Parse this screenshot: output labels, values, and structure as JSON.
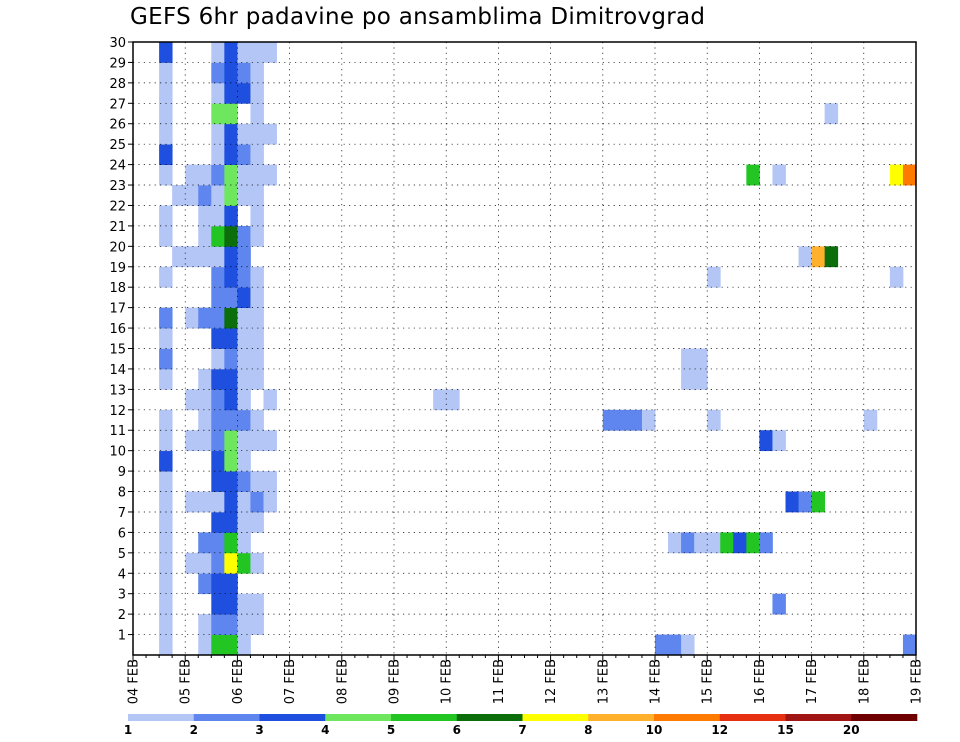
{
  "chart_title": "GEFS 6hr padavine po ansamblima Dimitrovgrad",
  "chart_data": {
    "type": "heatmap",
    "title": "GEFS 6hr padavine po ansamblima Dimitrovgrad",
    "x_axis": {
      "tick_labels": [
        "04 FEB",
        "05 FEB",
        "06 FEB",
        "07 FEB",
        "08 FEB",
        "09 FEB",
        "10 FEB",
        "11 FEB",
        "12 FEB",
        "13 FEB",
        "14 FEB",
        "15 FEB",
        "16 FEB",
        "17 FEB",
        "18 FEB",
        "19 FEB"
      ],
      "steps_per_day": 4,
      "total_steps": 60
    },
    "y_axis": {
      "tick_labels": [
        "1",
        "2",
        "3",
        "4",
        "5",
        "6",
        "7",
        "8",
        "9",
        "10",
        "11",
        "12",
        "13",
        "14",
        "15",
        "16",
        "17",
        "18",
        "19",
        "20",
        "21",
        "22",
        "23",
        "24",
        "25",
        "26",
        "27",
        "28",
        "29",
        "30"
      ],
      "range": [
        0,
        30
      ]
    },
    "grid": true,
    "colorbar": {
      "position": "bottom",
      "labels": [
        "1",
        "2",
        "3",
        "4",
        "5",
        "6",
        "7",
        "8",
        "10",
        "12",
        "15",
        "20"
      ],
      "colors": [
        "#b3c6f5",
        "#5e86ee",
        "#1f4fde",
        "#6ee65e",
        "#22c522",
        "#0b6e0b",
        "#ffff00",
        "#ffb12e",
        "#ff7a00",
        "#e63012",
        "#a01414",
        "#6e0000"
      ]
    },
    "cells": [
      [
        1,
        2,
        1
      ],
      [
        1,
        5,
        1
      ],
      [
        1,
        6,
        5
      ],
      [
        1,
        7,
        5
      ],
      [
        1,
        8,
        1
      ],
      [
        1,
        40,
        2
      ],
      [
        1,
        41,
        2
      ],
      [
        1,
        42,
        1
      ],
      [
        1,
        59,
        2
      ],
      [
        2,
        2,
        1
      ],
      [
        2,
        5,
        1
      ],
      [
        2,
        6,
        2
      ],
      [
        2,
        7,
        2
      ],
      [
        2,
        8,
        1
      ],
      [
        2,
        9,
        1
      ],
      [
        3,
        2,
        1
      ],
      [
        3,
        6,
        3
      ],
      [
        3,
        7,
        3
      ],
      [
        3,
        8,
        1
      ],
      [
        3,
        9,
        1
      ],
      [
        3,
        49,
        2
      ],
      [
        4,
        2,
        1
      ],
      [
        4,
        5,
        2
      ],
      [
        4,
        6,
        3
      ],
      [
        4,
        7,
        3
      ],
      [
        5,
        2,
        1
      ],
      [
        5,
        4,
        1
      ],
      [
        5,
        5,
        1
      ],
      [
        5,
        6,
        2
      ],
      [
        5,
        7,
        7
      ],
      [
        5,
        8,
        5
      ],
      [
        5,
        9,
        1
      ],
      [
        6,
        2,
        1
      ],
      [
        6,
        5,
        2
      ],
      [
        6,
        6,
        2
      ],
      [
        6,
        7,
        5
      ],
      [
        6,
        8,
        1
      ],
      [
        6,
        41,
        1
      ],
      [
        6,
        42,
        2
      ],
      [
        6,
        43,
        1
      ],
      [
        6,
        44,
        1
      ],
      [
        6,
        45,
        5
      ],
      [
        6,
        46,
        3
      ],
      [
        6,
        47,
        5
      ],
      [
        6,
        48,
        2
      ],
      [
        7,
        2,
        1
      ],
      [
        7,
        6,
        3
      ],
      [
        7,
        7,
        3
      ],
      [
        7,
        8,
        1
      ],
      [
        7,
        9,
        1
      ],
      [
        8,
        2,
        1
      ],
      [
        8,
        4,
        1
      ],
      [
        8,
        5,
        1
      ],
      [
        8,
        6,
        1
      ],
      [
        8,
        7,
        3
      ],
      [
        8,
        8,
        1
      ],
      [
        8,
        9,
        2
      ],
      [
        8,
        10,
        1
      ],
      [
        8,
        50,
        3
      ],
      [
        8,
        51,
        2
      ],
      [
        8,
        52,
        5
      ],
      [
        9,
        2,
        1
      ],
      [
        9,
        6,
        3
      ],
      [
        9,
        7,
        3
      ],
      [
        9,
        8,
        2
      ],
      [
        9,
        9,
        1
      ],
      [
        9,
        10,
        1
      ],
      [
        10,
        2,
        3
      ],
      [
        10,
        6,
        3
      ],
      [
        10,
        7,
        4
      ],
      [
        10,
        8,
        1
      ],
      [
        11,
        2,
        1
      ],
      [
        11,
        4,
        1
      ],
      [
        11,
        5,
        1
      ],
      [
        11,
        6,
        2
      ],
      [
        11,
        7,
        4
      ],
      [
        11,
        8,
        1
      ],
      [
        11,
        9,
        1
      ],
      [
        11,
        10,
        1
      ],
      [
        11,
        48,
        3
      ],
      [
        11,
        49,
        1
      ],
      [
        12,
        2,
        1
      ],
      [
        12,
        5,
        1
      ],
      [
        12,
        6,
        2
      ],
      [
        12,
        7,
        2
      ],
      [
        12,
        8,
        2
      ],
      [
        12,
        9,
        1
      ],
      [
        12,
        36,
        2
      ],
      [
        12,
        37,
        2
      ],
      [
        12,
        38,
        2
      ],
      [
        12,
        39,
        1
      ],
      [
        12,
        44,
        1
      ],
      [
        12,
        56,
        1
      ],
      [
        13,
        4,
        1
      ],
      [
        13,
        5,
        1
      ],
      [
        13,
        6,
        2
      ],
      [
        13,
        7,
        3
      ],
      [
        13,
        8,
        1
      ],
      [
        13,
        10,
        1
      ],
      [
        13,
        23,
        1
      ],
      [
        13,
        24,
        1
      ],
      [
        14,
        2,
        1
      ],
      [
        14,
        5,
        1
      ],
      [
        14,
        6,
        3
      ],
      [
        14,
        7,
        3
      ],
      [
        14,
        8,
        1
      ],
      [
        14,
        9,
        1
      ],
      [
        14,
        42,
        1
      ],
      [
        14,
        43,
        1
      ],
      [
        15,
        2,
        2
      ],
      [
        15,
        6,
        1
      ],
      [
        15,
        7,
        2
      ],
      [
        15,
        8,
        1
      ],
      [
        15,
        9,
        1
      ],
      [
        15,
        42,
        1
      ],
      [
        15,
        43,
        1
      ],
      [
        16,
        2,
        1
      ],
      [
        16,
        6,
        3
      ],
      [
        16,
        7,
        3
      ],
      [
        16,
        8,
        1
      ],
      [
        16,
        9,
        1
      ],
      [
        17,
        2,
        2
      ],
      [
        17,
        4,
        1
      ],
      [
        17,
        5,
        2
      ],
      [
        17,
        6,
        2
      ],
      [
        17,
        7,
        6
      ],
      [
        17,
        8,
        1
      ],
      [
        17,
        9,
        1
      ],
      [
        18,
        6,
        2
      ],
      [
        18,
        7,
        2
      ],
      [
        18,
        8,
        3
      ],
      [
        18,
        9,
        1
      ],
      [
        19,
        2,
        1
      ],
      [
        19,
        6,
        2
      ],
      [
        19,
        7,
        3
      ],
      [
        19,
        8,
        2
      ],
      [
        19,
        9,
        1
      ],
      [
        19,
        44,
        1
      ],
      [
        19,
        58,
        1
      ],
      [
        20,
        3,
        1
      ],
      [
        20,
        4,
        1
      ],
      [
        20,
        5,
        1
      ],
      [
        20,
        6,
        1
      ],
      [
        20,
        7,
        3
      ],
      [
        20,
        8,
        2
      ],
      [
        20,
        51,
        1
      ],
      [
        20,
        52,
        8
      ],
      [
        20,
        53,
        6
      ],
      [
        21,
        2,
        1
      ],
      [
        21,
        5,
        1
      ],
      [
        21,
        6,
        5
      ],
      [
        21,
        7,
        6
      ],
      [
        21,
        8,
        2
      ],
      [
        21,
        9,
        1
      ],
      [
        22,
        2,
        1
      ],
      [
        22,
        5,
        1
      ],
      [
        22,
        6,
        1
      ],
      [
        22,
        7,
        3
      ],
      [
        22,
        9,
        1
      ],
      [
        23,
        3,
        1
      ],
      [
        23,
        4,
        1
      ],
      [
        23,
        5,
        2
      ],
      [
        23,
        6,
        1
      ],
      [
        23,
        7,
        4
      ],
      [
        23,
        8,
        1
      ],
      [
        23,
        9,
        1
      ],
      [
        24,
        2,
        1
      ],
      [
        24,
        4,
        1
      ],
      [
        24,
        5,
        1
      ],
      [
        24,
        6,
        2
      ],
      [
        24,
        7,
        4
      ],
      [
        24,
        8,
        1
      ],
      [
        24,
        9,
        1
      ],
      [
        24,
        10,
        1
      ],
      [
        24,
        47,
        5
      ],
      [
        24,
        49,
        1
      ],
      [
        24,
        58,
        7
      ],
      [
        24,
        59,
        9
      ],
      [
        25,
        2,
        3
      ],
      [
        25,
        6,
        1
      ],
      [
        25,
        7,
        3
      ],
      [
        25,
        8,
        2
      ],
      [
        25,
        9,
        1
      ],
      [
        26,
        2,
        1
      ],
      [
        26,
        6,
        1
      ],
      [
        26,
        7,
        3
      ],
      [
        26,
        8,
        1
      ],
      [
        26,
        9,
        1
      ],
      [
        26,
        10,
        1
      ],
      [
        27,
        2,
        1
      ],
      [
        27,
        6,
        4
      ],
      [
        27,
        7,
        4
      ],
      [
        27,
        9,
        1
      ],
      [
        27,
        53,
        1
      ],
      [
        28,
        2,
        1
      ],
      [
        28,
        6,
        1
      ],
      [
        28,
        7,
        3
      ],
      [
        28,
        8,
        3
      ],
      [
        28,
        9,
        1
      ],
      [
        29,
        2,
        1
      ],
      [
        29,
        6,
        2
      ],
      [
        29,
        7,
        3
      ],
      [
        29,
        8,
        2
      ],
      [
        29,
        9,
        1
      ],
      [
        30,
        2,
        3
      ],
      [
        30,
        6,
        1
      ],
      [
        30,
        7,
        3
      ],
      [
        30,
        8,
        1
      ],
      [
        30,
        9,
        1
      ],
      [
        30,
        10,
        1
      ]
    ]
  }
}
